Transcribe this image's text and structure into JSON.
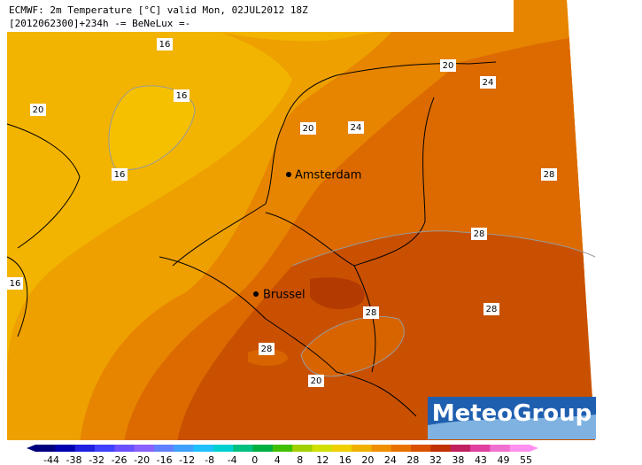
{
  "header": [
    "ECMWF: 2m Temperature [°C] valid Mon, 02JUL2012 18Z",
    "[2012062300]+234h -= BeNeLux =-"
  ],
  "cities": [
    "Amsterdam",
    "Brussel"
  ],
  "contour_labels": [
    "16",
    "16",
    "16",
    "20",
    "20",
    "20",
    "24",
    "24",
    "28",
    "28",
    "28",
    "28",
    "28",
    "20",
    "16"
  ],
  "logo": "MeteoGroup",
  "scale_labels": [
    -44,
    -38,
    -32,
    -26,
    -20,
    -16,
    -12,
    -8,
    -4,
    0,
    4,
    8,
    12,
    16,
    20,
    24,
    28,
    32,
    38,
    43,
    49,
    55
  ]
}
